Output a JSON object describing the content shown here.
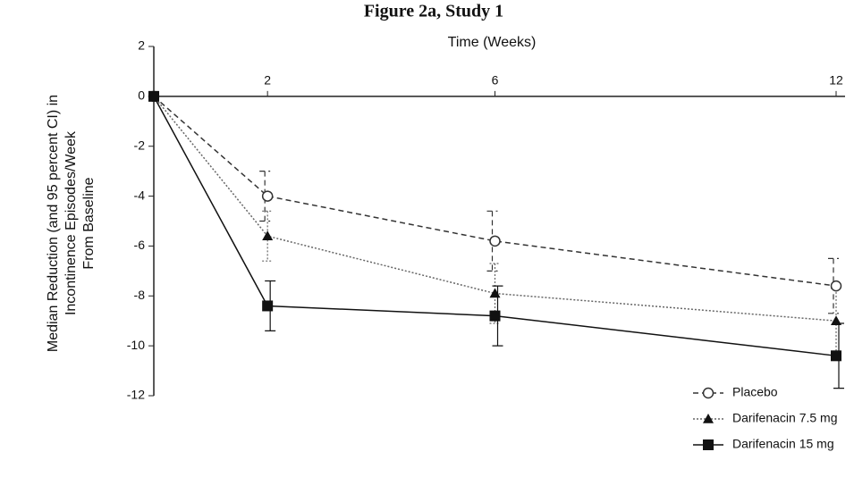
{
  "chart_data": {
    "type": "line",
    "title": "Figure 2a, Study 1",
    "xlabel": "Time (Weeks)",
    "ylabel": [
      "Median Reduction (and 95 percent CI) in",
      "Incontinence Episodes/Week",
      "From Baseline"
    ],
    "x": [
      0,
      2,
      6,
      12
    ],
    "xlim": [
      0,
      12
    ],
    "xticks": [
      2,
      6,
      12
    ],
    "ylim": [
      -12,
      2
    ],
    "yticks": [
      2,
      0,
      -2,
      -4,
      -6,
      -8,
      -10,
      -12
    ],
    "legend": "lower right",
    "series": [
      {
        "name": "Placebo",
        "color": "#333333",
        "dash": "dashed",
        "marker": "circle-open",
        "values": [
          0,
          -4,
          -5.8,
          -7.6
        ],
        "errors": [
          null,
          1,
          1.2,
          1.1
        ]
      },
      {
        "name": "Darifenacin 7.5 mg",
        "color": "#666666",
        "dash": "dotted",
        "marker": "triangle",
        "values": [
          0,
          -5.6,
          -7.9,
          -9
        ],
        "errors": [
          null,
          1,
          1.2,
          1.3
        ]
      },
      {
        "name": "Darifenacin 15 mg",
        "color": "#111111",
        "dash": "solid",
        "marker": "square",
        "values": [
          0,
          -8.4,
          -8.8,
          -10.4
        ],
        "errors": [
          null,
          1,
          1.2,
          1.3
        ]
      }
    ]
  }
}
